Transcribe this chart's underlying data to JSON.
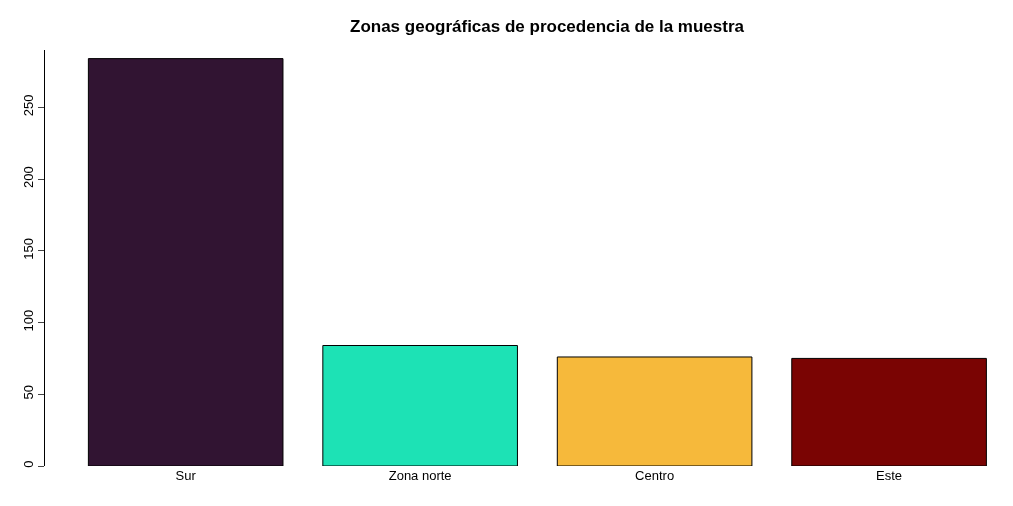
{
  "chart_data": {
    "type": "bar",
    "title": "Zonas geográficas de procedencia de la muestra",
    "categories": [
      "Sur",
      "Zona norte",
      "Centro",
      "Este"
    ],
    "values": [
      284,
      84,
      76,
      75
    ],
    "colors": [
      "#311432",
      "#1de2b5",
      "#f6b93b",
      "#7a0403"
    ],
    "ylim": [
      0,
      290
    ],
    "yticks": [
      0,
      50,
      100,
      150,
      200,
      250
    ]
  }
}
